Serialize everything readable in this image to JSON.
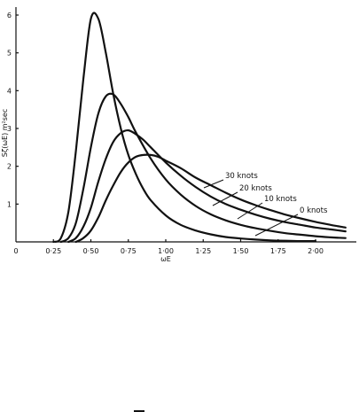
{
  "chart_data": {
    "type": "line",
    "title": "",
    "xlabel": "ωE",
    "ylabel": "Sζ(ωE) m²sec",
    "xlim": [
      0,
      2.25
    ],
    "ylim": [
      0,
      6.3
    ],
    "x_ticks": [
      0,
      0.25,
      0.5,
      0.75,
      1.0,
      1.25,
      1.5,
      1.75,
      2.0
    ],
    "x_tick_labels": [
      "0",
      "0·25",
      "0·50",
      "0·75",
      "1·00",
      "1·25",
      "1·50",
      "1·75",
      "2·00"
    ],
    "y_ticks": [
      1,
      2,
      3,
      4,
      5,
      6
    ],
    "y_tick_labels": [
      "1",
      "2",
      "3",
      "4",
      "5",
      "6"
    ],
    "grid": false,
    "legend": "inline labels at right",
    "series": [
      {
        "name": "0 knots",
        "x": [
          0.25,
          0.3,
          0.35,
          0.4,
          0.45,
          0.5,
          0.55,
          0.6,
          0.65,
          0.7,
          0.75,
          0.8,
          0.85,
          0.9,
          1.0,
          1.1,
          1.2,
          1.3,
          1.4,
          1.5,
          1.6,
          1.7,
          1.8,
          1.9,
          2.0
        ],
        "values": [
          0.0,
          0.1,
          0.8,
          2.4,
          4.3,
          5.9,
          5.9,
          5.0,
          3.9,
          3.0,
          2.3,
          1.8,
          1.4,
          1.1,
          0.7,
          0.45,
          0.3,
          0.2,
          0.13,
          0.09,
          0.06,
          0.04,
          0.03,
          0.02,
          0.02
        ]
      },
      {
        "name": "10 knots",
        "x": [
          0.3,
          0.35,
          0.4,
          0.45,
          0.5,
          0.55,
          0.6,
          0.65,
          0.7,
          0.75,
          0.8,
          0.9,
          1.0,
          1.1,
          1.2,
          1.3,
          1.4,
          1.5,
          1.6,
          1.7,
          1.8,
          1.9,
          2.0,
          2.1,
          2.2
        ],
        "values": [
          0.0,
          0.1,
          0.5,
          1.4,
          2.5,
          3.4,
          3.85,
          3.9,
          3.65,
          3.3,
          2.9,
          2.2,
          1.65,
          1.25,
          0.95,
          0.73,
          0.57,
          0.45,
          0.36,
          0.29,
          0.23,
          0.19,
          0.15,
          0.12,
          0.1
        ]
      },
      {
        "name": "20 knots",
        "x": [
          0.35,
          0.4,
          0.45,
          0.5,
          0.55,
          0.6,
          0.65,
          0.7,
          0.75,
          0.8,
          0.85,
          0.9,
          1.0,
          1.1,
          1.2,
          1.3,
          1.4,
          1.5,
          1.6,
          1.7,
          1.8,
          1.9,
          2.0,
          2.1,
          2.2
        ],
        "values": [
          0.0,
          0.1,
          0.4,
          0.9,
          1.6,
          2.2,
          2.65,
          2.88,
          2.95,
          2.85,
          2.7,
          2.5,
          2.1,
          1.75,
          1.45,
          1.2,
          1.0,
          0.85,
          0.72,
          0.61,
          0.52,
          0.45,
          0.38,
          0.33,
          0.28
        ]
      },
      {
        "name": "30 knots",
        "x": [
          0.4,
          0.45,
          0.5,
          0.55,
          0.6,
          0.65,
          0.7,
          0.75,
          0.8,
          0.85,
          0.9,
          0.95,
          1.0,
          1.1,
          1.2,
          1.3,
          1.4,
          1.5,
          1.6,
          1.7,
          1.8,
          1.9,
          2.0,
          2.1,
          2.2
        ],
        "values": [
          0.0,
          0.1,
          0.3,
          0.65,
          1.1,
          1.5,
          1.85,
          2.1,
          2.25,
          2.3,
          2.3,
          2.25,
          2.15,
          1.95,
          1.7,
          1.5,
          1.3,
          1.12,
          0.97,
          0.84,
          0.72,
          0.62,
          0.53,
          0.45,
          0.38
        ]
      }
    ]
  }
}
